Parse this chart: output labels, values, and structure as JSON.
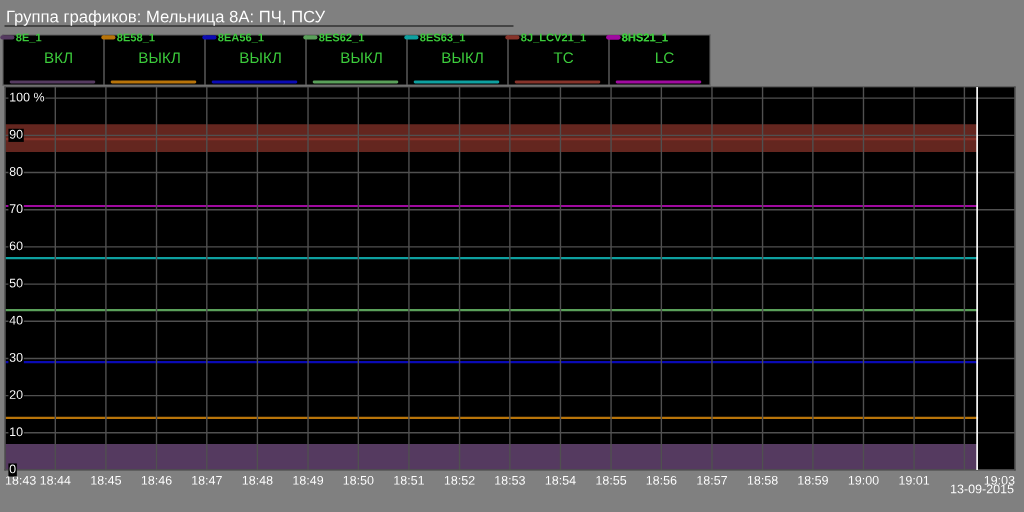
{
  "chart_data": {
    "type": "line",
    "title": "Группа графиков: Мельница 8А: ПЧ, ПСУ",
    "x": [
      18.7167,
      19.0375
    ],
    "series": [
      {
        "name": "8E_1",
        "type": "area",
        "color": "#553a60",
        "values": [
          7,
          7
        ]
      },
      {
        "name": "8E58_1",
        "color": "#b8740a",
        "values": [
          14,
          14
        ]
      },
      {
        "name": "8EA56_1",
        "color": "#0a0ab4",
        "values": [
          29,
          29
        ]
      },
      {
        "name": "8ES62_1",
        "color": "#5aa05a",
        "values": [
          43,
          43
        ]
      },
      {
        "name": "8ES63_1",
        "color": "#0ea0a0",
        "values": [
          57,
          57
        ]
      },
      {
        "name": "8J_LCV21_1",
        "color": "#86332a",
        "values": [
          89,
          89
        ],
        "lower": [
          85.5,
          85.5
        ],
        "upper": [
          93,
          93
        ]
      },
      {
        "name": "8HS21_1",
        "color": "#a00aa0",
        "values": [
          71,
          71
        ]
      }
    ],
    "annotations": [
      "ВКЛ",
      "ВЫКЛ",
      "ВЫКЛ",
      "ВЫКЛ",
      "ВЫКЛ",
      "TC",
      "LC",
      "13-09-2015"
    ],
    "xlim": [
      18.7167,
      19.05
    ],
    "xticks": [
      {
        "value": 18.7167,
        "label": "18:43"
      },
      {
        "value": 18.7333,
        "label": "18:44"
      },
      {
        "value": 18.75,
        "label": "18:45"
      },
      {
        "value": 18.7667,
        "label": "18:46"
      },
      {
        "value": 18.7833,
        "label": "18:47"
      },
      {
        "value": 18.8,
        "label": "18:48"
      },
      {
        "value": 18.8167,
        "label": "18:49"
      },
      {
        "value": 18.8333,
        "label": "18:50"
      },
      {
        "value": 18.85,
        "label": "18:51"
      },
      {
        "value": 18.8667,
        "label": "18:52"
      },
      {
        "value": 18.8833,
        "label": "18:53"
      },
      {
        "value": 18.9,
        "label": "18:54"
      },
      {
        "value": 18.9167,
        "label": "18:55"
      },
      {
        "value": 18.9333,
        "label": "18:56"
      },
      {
        "value": 18.95,
        "label": "18:57"
      },
      {
        "value": 18.9667,
        "label": "18:58"
      },
      {
        "value": 18.9833,
        "label": "18:59"
      },
      {
        "value": 19.0,
        "label": "19:00"
      },
      {
        "value": 19.0167,
        "label": "19:01"
      },
      {
        "value": 19.0333,
        "label": null
      },
      {
        "value": 19.05,
        "label": "19:03"
      }
    ],
    "ylim": [
      0,
      103
    ],
    "yticks": [
      0,
      10,
      20,
      30,
      40,
      50,
      60,
      70,
      80,
      90,
      {
        "value": 100,
        "label": "100 %"
      }
    ],
    "ref_lines": [
      {
        "axis": "x",
        "value": 19.0375,
        "color": "#ffffff"
      }
    ],
    "grid": true,
    "legend": "top left"
  }
}
